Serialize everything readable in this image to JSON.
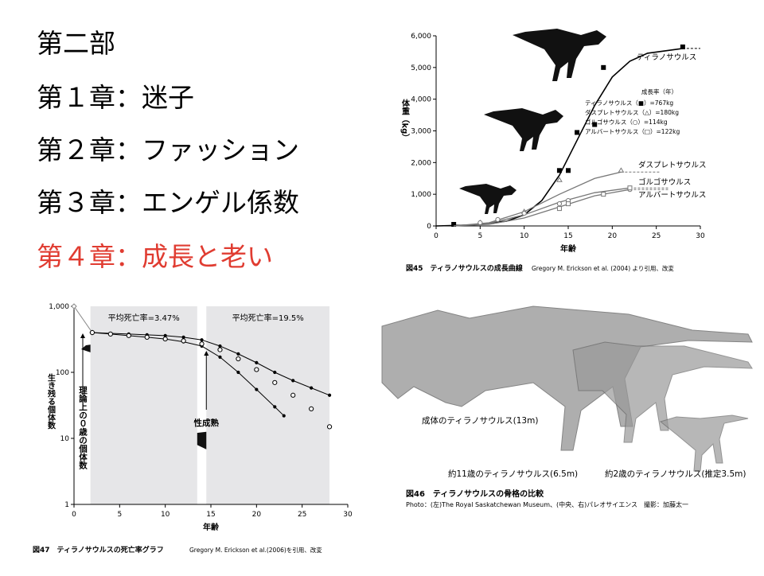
{
  "slide": {
    "lines": [
      "第二部",
      "第１章：迷子",
      "第２章：ファッション",
      "第３章：エンゲル係数",
      "第４章：成長と老い"
    ]
  },
  "chart_data": [
    {
      "type": "scatter",
      "caption": "図45　ティラノサウルスの成長曲線",
      "source": "Gregory M. Erickson et al. (2004) より引用、改変",
      "x_label": "年齢",
      "y_label": "体重（kg）",
      "xlim": [
        0,
        30
      ],
      "xticks": [
        0,
        5,
        10,
        15,
        20,
        25,
        30
      ],
      "ylim": [
        0,
        6000
      ],
      "yticks": [
        0,
        {
          "value": 1000,
          "label": "1,000"
        },
        {
          "value": 2000,
          "label": "2,000"
        },
        {
          "value": 3000,
          "label": "3,000"
        },
        {
          "value": 4000,
          "label": "4,000"
        },
        {
          "value": 5000,
          "label": "5,000"
        },
        {
          "value": 6000,
          "label": "6,000"
        }
      ],
      "legend_title": "成長率（年）",
      "series": [
        {
          "name": "ティラノサウルス",
          "legend": "ティラノサウルス（■）=767kg",
          "marker": "square",
          "filled": true,
          "color": "#000000",
          "x": [
            2,
            14,
            15,
            16,
            18,
            19,
            28
          ],
          "values": [
            50,
            1750,
            1750,
            2950,
            3200,
            5000,
            5650
          ],
          "curve_x": [
            0,
            4,
            8,
            10,
            12,
            14,
            16,
            18,
            20,
            22,
            24,
            28
          ],
          "curve_values": [
            0,
            30,
            150,
            350,
            800,
            1600,
            2700,
            3800,
            4700,
            5200,
            5450,
            5600
          ]
        },
        {
          "name": "ダスプレトサウルス",
          "legend": "ダスプレトサウルス（△）=180kg",
          "marker": "triangle",
          "filled": false,
          "color": "#777777",
          "x": [
            5,
            10,
            14,
            21
          ],
          "values": [
            100,
            450,
            1450,
            1750
          ],
          "curve_x": [
            2,
            6,
            10,
            14,
            18,
            21
          ],
          "curve_values": [
            0,
            100,
            450,
            1000,
            1500,
            1700
          ]
        },
        {
          "name": "ゴルゴサウルス",
          "legend": "ゴルゴサウルス（○）=114kg",
          "marker": "circle",
          "filled": false,
          "color": "#777777",
          "x": [
            5,
            7,
            10,
            14,
            15,
            22
          ],
          "values": [
            100,
            200,
            400,
            700,
            800,
            1150
          ],
          "curve_x": [
            2,
            6,
            10,
            14,
            18,
            22
          ],
          "curve_values": [
            0,
            80,
            350,
            750,
            1050,
            1200
          ]
        },
        {
          "name": "アルバートサウルス",
          "legend": "アルバートサウルス（□）=122kg",
          "marker": "square",
          "filled": false,
          "color": "#777777",
          "x": [
            14,
            15,
            19,
            22
          ],
          "values": [
            550,
            700,
            1000,
            1200
          ],
          "curve_x": [
            2,
            6,
            10,
            14,
            18,
            22
          ],
          "curve_values": [
            0,
            50,
            250,
            600,
            950,
            1150
          ]
        }
      ]
    },
    {
      "type": "line",
      "log_y": true,
      "caption": "図47　ティラノサウルスの死亡率グラフ",
      "source": "Gregory M. Erickson et al.(2006)を引用、改変",
      "x_label": "年齢",
      "y_label": "生き残る個体数",
      "xlim": [
        0,
        30
      ],
      "xticks": [
        0,
        5,
        10,
        15,
        20,
        25,
        30
      ],
      "ylim": [
        1,
        1000
      ],
      "yticks": [
        1,
        10,
        100,
        {
          "value": 1000,
          "label": "1,000"
        }
      ],
      "bands": [
        {
          "x": [
            1.8,
            13.5
          ],
          "label": "平均死亡率=3.47%"
        },
        {
          "x": [
            14.5,
            28
          ],
          "label": "平均死亡率=19.5%"
        }
      ],
      "annotations": [
        "理論上の０歳の個体数",
        "性成熟"
      ],
      "series": [
        {
          "marker": "diamond",
          "line": true,
          "color": "#888888",
          "x": [
            0,
            2
          ],
          "values": [
            1000,
            400
          ]
        },
        {
          "marker": "dot",
          "line": true,
          "color": "#000000",
          "x": [
            2,
            4,
            6,
            8,
            10,
            12,
            14,
            16,
            18,
            20,
            22,
            24,
            26,
            28
          ],
          "values": [
            400,
            390,
            380,
            370,
            360,
            340,
            310,
            250,
            190,
            140,
            100,
            75,
            58,
            45
          ]
        },
        {
          "marker": "dot",
          "line": true,
          "color": "#000000",
          "x": [
            2,
            4,
            6,
            8,
            10,
            12,
            14,
            16,
            18,
            20,
            22,
            23
          ],
          "values": [
            400,
            380,
            360,
            340,
            320,
            290,
            250,
            170,
            100,
            55,
            30,
            22
          ]
        },
        {
          "marker": "circle",
          "line": false,
          "color": "#000000",
          "x": [
            2,
            4,
            6,
            8,
            10,
            12,
            14,
            16,
            18,
            20,
            22,
            24,
            26,
            28
          ],
          "values": [
            400,
            380,
            360,
            340,
            320,
            300,
            270,
            220,
            160,
            110,
            70,
            45,
            28,
            15
          ]
        }
      ]
    }
  ],
  "figure": {
    "labels": [
      "成体のティラノサウルス(13m)",
      "約11歳のティラノサウルス(6.5m)",
      "約2歳のティラノサウルス(推定3.5m)"
    ],
    "caption": "図46　ティラノサウルスの骨格の比較",
    "credit": "Photo：(左)The Royal Saskatchewan Museum、(中央、右)パレオサイエンス　撮影：加藤太一"
  }
}
